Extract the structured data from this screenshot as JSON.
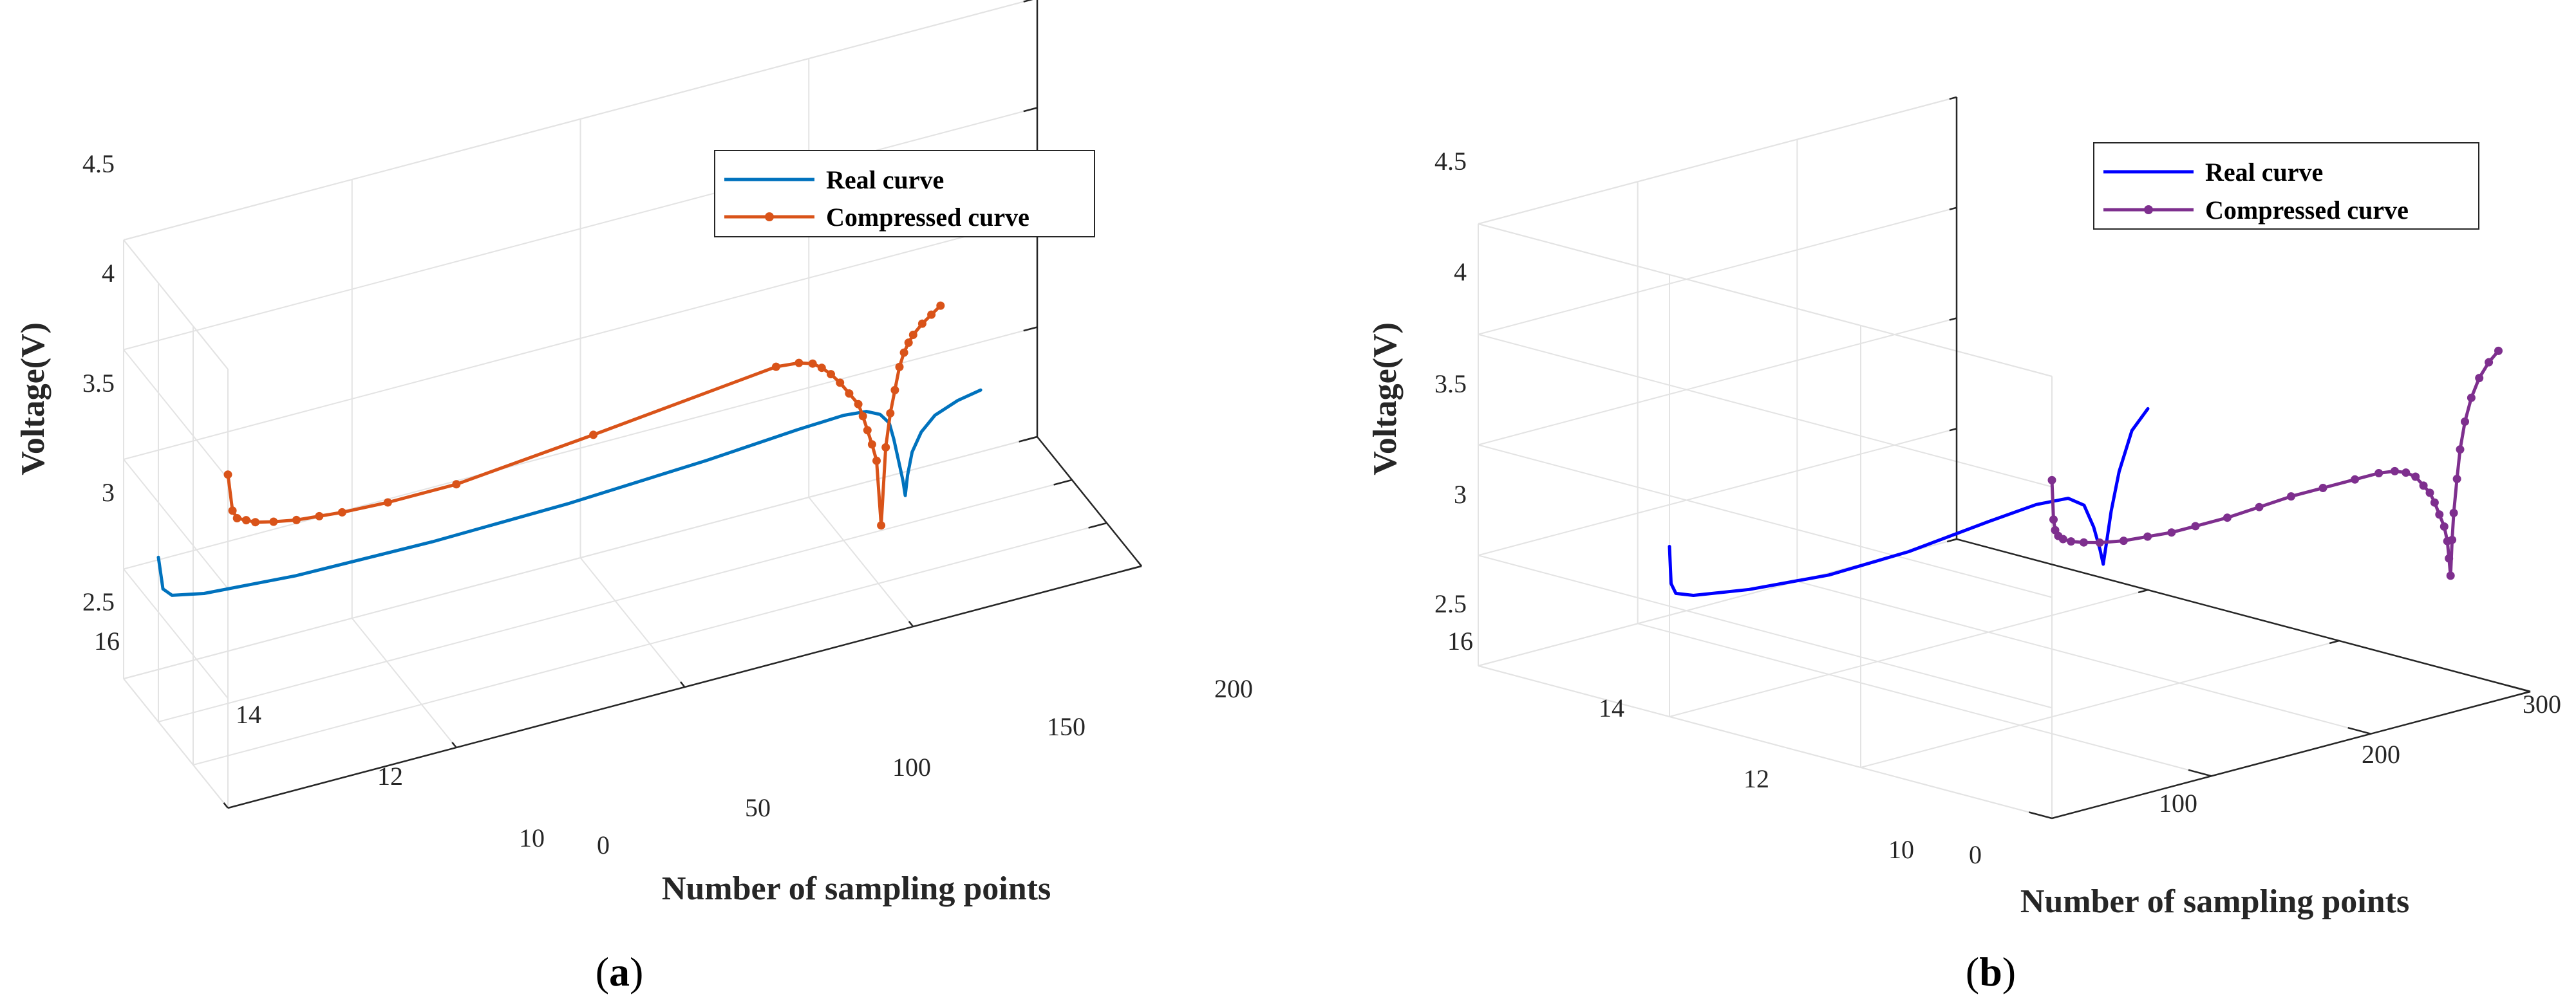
{
  "figure": {
    "captions": [
      {
        "open": "(",
        "letter": "a",
        "close": ")"
      },
      {
        "open": "(",
        "letter": "b",
        "close": ")"
      }
    ]
  },
  "chart_data": [
    {
      "type": "line",
      "panel": "a",
      "zlabel": "Voltage(V)",
      "xlabel": "Number of sampling points",
      "x_ticks": [
        "0",
        "50",
        "100",
        "150",
        "200"
      ],
      "y_ticks": [
        "10",
        "12",
        "14",
        "16"
      ],
      "z_ticks": [
        "2.5",
        "3",
        "3.5",
        "4",
        "4.5"
      ],
      "xlim": [
        0,
        200
      ],
      "ylim": [
        10,
        16
      ],
      "zlim": [
        2.5,
        4.5
      ],
      "legend": {
        "location": "top-right",
        "entries": [
          "Real curve",
          "Compressed curve"
        ]
      },
      "series": [
        {
          "name": "Real curve",
          "color": "#0072BD",
          "markers": false,
          "y": 14,
          "points": [
            [
              0,
              3.25
            ],
            [
              1,
              3.1
            ],
            [
              3,
              3.06
            ],
            [
              10,
              3.03
            ],
            [
              30,
              3.0
            ],
            [
              60,
              2.99
            ],
            [
              90,
              3.0
            ],
            [
              120,
              3.03
            ],
            [
              140,
              3.06
            ],
            [
              150,
              3.07
            ],
            [
              155,
              3.06
            ],
            [
              158,
              3.03
            ],
            [
              160,
              2.98
            ],
            [
              161,
              2.9
            ],
            [
              162,
              2.8
            ],
            [
              163,
              2.7
            ],
            [
              163.5,
              2.63
            ],
            [
              164,
              2.72
            ],
            [
              165,
              2.82
            ],
            [
              167,
              2.9
            ],
            [
              170,
              2.96
            ],
            [
              175,
              3.0
            ],
            [
              180,
              3.02
            ]
          ]
        },
        {
          "name": "Compressed curve",
          "color": "#D95319",
          "markers": true,
          "y": 10,
          "points": [
            [
              0,
              4.02
            ],
            [
              1,
              3.85
            ],
            [
              2,
              3.81
            ],
            [
              4,
              3.79
            ],
            [
              6,
              3.77
            ],
            [
              10,
              3.75
            ],
            [
              15,
              3.73
            ],
            [
              20,
              3.72
            ],
            [
              25,
              3.71
            ],
            [
              35,
              3.7
            ],
            [
              50,
              3.7
            ],
            [
              80,
              3.76
            ],
            [
              120,
              3.85
            ],
            [
              125,
              3.84
            ],
            [
              128,
              3.82
            ],
            [
              130,
              3.79
            ],
            [
              132,
              3.75
            ],
            [
              134,
              3.7
            ],
            [
              136,
              3.64
            ],
            [
              138,
              3.58
            ],
            [
              139,
              3.52
            ],
            [
              140,
              3.45
            ],
            [
              141,
              3.38
            ],
            [
              142,
              3.3
            ],
            [
              143,
              3.0
            ],
            [
              144,
              3.35
            ],
            [
              145,
              3.5
            ],
            [
              146,
              3.6
            ],
            [
              147,
              3.7
            ],
            [
              148,
              3.76
            ],
            [
              149,
              3.8
            ],
            [
              150,
              3.83
            ],
            [
              152,
              3.87
            ],
            [
              154,
              3.9
            ],
            [
              156,
              3.93
            ]
          ]
        }
      ]
    },
    {
      "type": "line",
      "panel": "b",
      "zlabel": "Voltage(V)",
      "xlabel": "Number of sampling points",
      "x_ticks": [
        "0",
        "100",
        "200",
        "300"
      ],
      "y_ticks": [
        "10",
        "12",
        "14",
        "16"
      ],
      "z_ticks": [
        "2.5",
        "3",
        "3.5",
        "4",
        "4.5"
      ],
      "xlim": [
        0,
        300
      ],
      "ylim": [
        10,
        16
      ],
      "zlim": [
        2.5,
        4.5
      ],
      "legend": {
        "location": "top-right",
        "entries": [
          "Real curve",
          "Compressed curve"
        ]
      },
      "series": [
        {
          "name": "Real curve",
          "color": "#0000FF",
          "markers": false,
          "y": 14,
          "points": [
            [
              0,
              3.27
            ],
            [
              1,
              3.1
            ],
            [
              4,
              3.05
            ],
            [
              15,
              3.02
            ],
            [
              50,
              2.98
            ],
            [
              100,
              2.95
            ],
            [
              150,
              2.96
            ],
            [
              200,
              3.0
            ],
            [
              230,
              3.02
            ],
            [
              250,
              3.01
            ],
            [
              260,
              2.96
            ],
            [
              266,
              2.85
            ],
            [
              270,
              2.74
            ],
            [
              272,
              2.67
            ],
            [
              274,
              2.76
            ],
            [
              277,
              2.9
            ],
            [
              282,
              3.07
            ],
            [
              290,
              3.24
            ],
            [
              300,
              3.32
            ]
          ]
        },
        {
          "name": "Compressed curve",
          "color": "#7E2F8E",
          "markers": true,
          "y": 10,
          "points": [
            [
              0,
              4.03
            ],
            [
              1,
              3.85
            ],
            [
              2,
              3.8
            ],
            [
              4,
              3.77
            ],
            [
              7,
              3.75
            ],
            [
              12,
              3.73
            ],
            [
              20,
              3.71
            ],
            [
              30,
              3.69
            ],
            [
              45,
              3.67
            ],
            [
              60,
              3.66
            ],
            [
              75,
              3.65
            ],
            [
              90,
              3.65
            ],
            [
              110,
              3.65
            ],
            [
              130,
              3.66
            ],
            [
              150,
              3.67
            ],
            [
              170,
              3.67
            ],
            [
              190,
              3.67
            ],
            [
              205,
              3.67
            ],
            [
              215,
              3.66
            ],
            [
              222,
              3.64
            ],
            [
              228,
              3.61
            ],
            [
              233,
              3.56
            ],
            [
              237,
              3.52
            ],
            [
              240,
              3.47
            ],
            [
              243,
              3.41
            ],
            [
              246,
              3.35
            ],
            [
              248,
              3.28
            ],
            [
              249,
              3.2
            ],
            [
              250,
              3.12
            ],
            [
              251,
              3.28
            ],
            [
              252,
              3.4
            ],
            [
              254,
              3.55
            ],
            [
              256,
              3.68
            ],
            [
              259,
              3.8
            ],
            [
              263,
              3.9
            ],
            [
              268,
              3.98
            ],
            [
              274,
              4.04
            ],
            [
              280,
              4.08
            ]
          ]
        }
      ]
    }
  ]
}
